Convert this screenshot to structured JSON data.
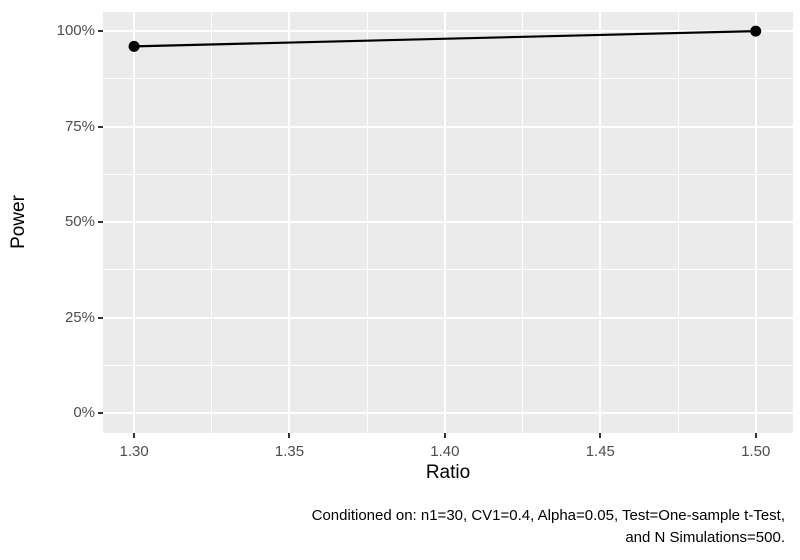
{
  "chart_data": {
    "type": "line",
    "title": "",
    "xlabel": "Ratio",
    "ylabel": "Power",
    "x_ticks": [
      1.3,
      1.35,
      1.4,
      1.45,
      1.5
    ],
    "x_tick_labels": [
      "1.30",
      "1.35",
      "1.40",
      "1.45",
      "1.50"
    ],
    "y_ticks": [
      0,
      25,
      50,
      75,
      100
    ],
    "y_tick_labels": [
      "0%",
      "25%",
      "50%",
      "75%",
      "100%"
    ],
    "xlim": [
      1.29,
      1.512
    ],
    "ylim": [
      -5.2,
      105
    ],
    "grid": true,
    "legend": "none",
    "series": [
      {
        "name": "Power",
        "x": [
          1.3,
          1.5
        ],
        "y": [
          96,
          100
        ],
        "color": "#000000"
      }
    ],
    "caption_lines": [
      "Conditioned on: n1=30, CV1=0.4, Alpha=0.05, Test=One-sample t-Test,",
      "and N Simulations=500."
    ],
    "colors": {
      "panel_background": "#EBEBEB",
      "grid": "#FFFFFF",
      "tick_mark": "#333333",
      "tick_label": "#4D4D4D",
      "axis_title": "#000000",
      "caption": "#000000"
    }
  }
}
